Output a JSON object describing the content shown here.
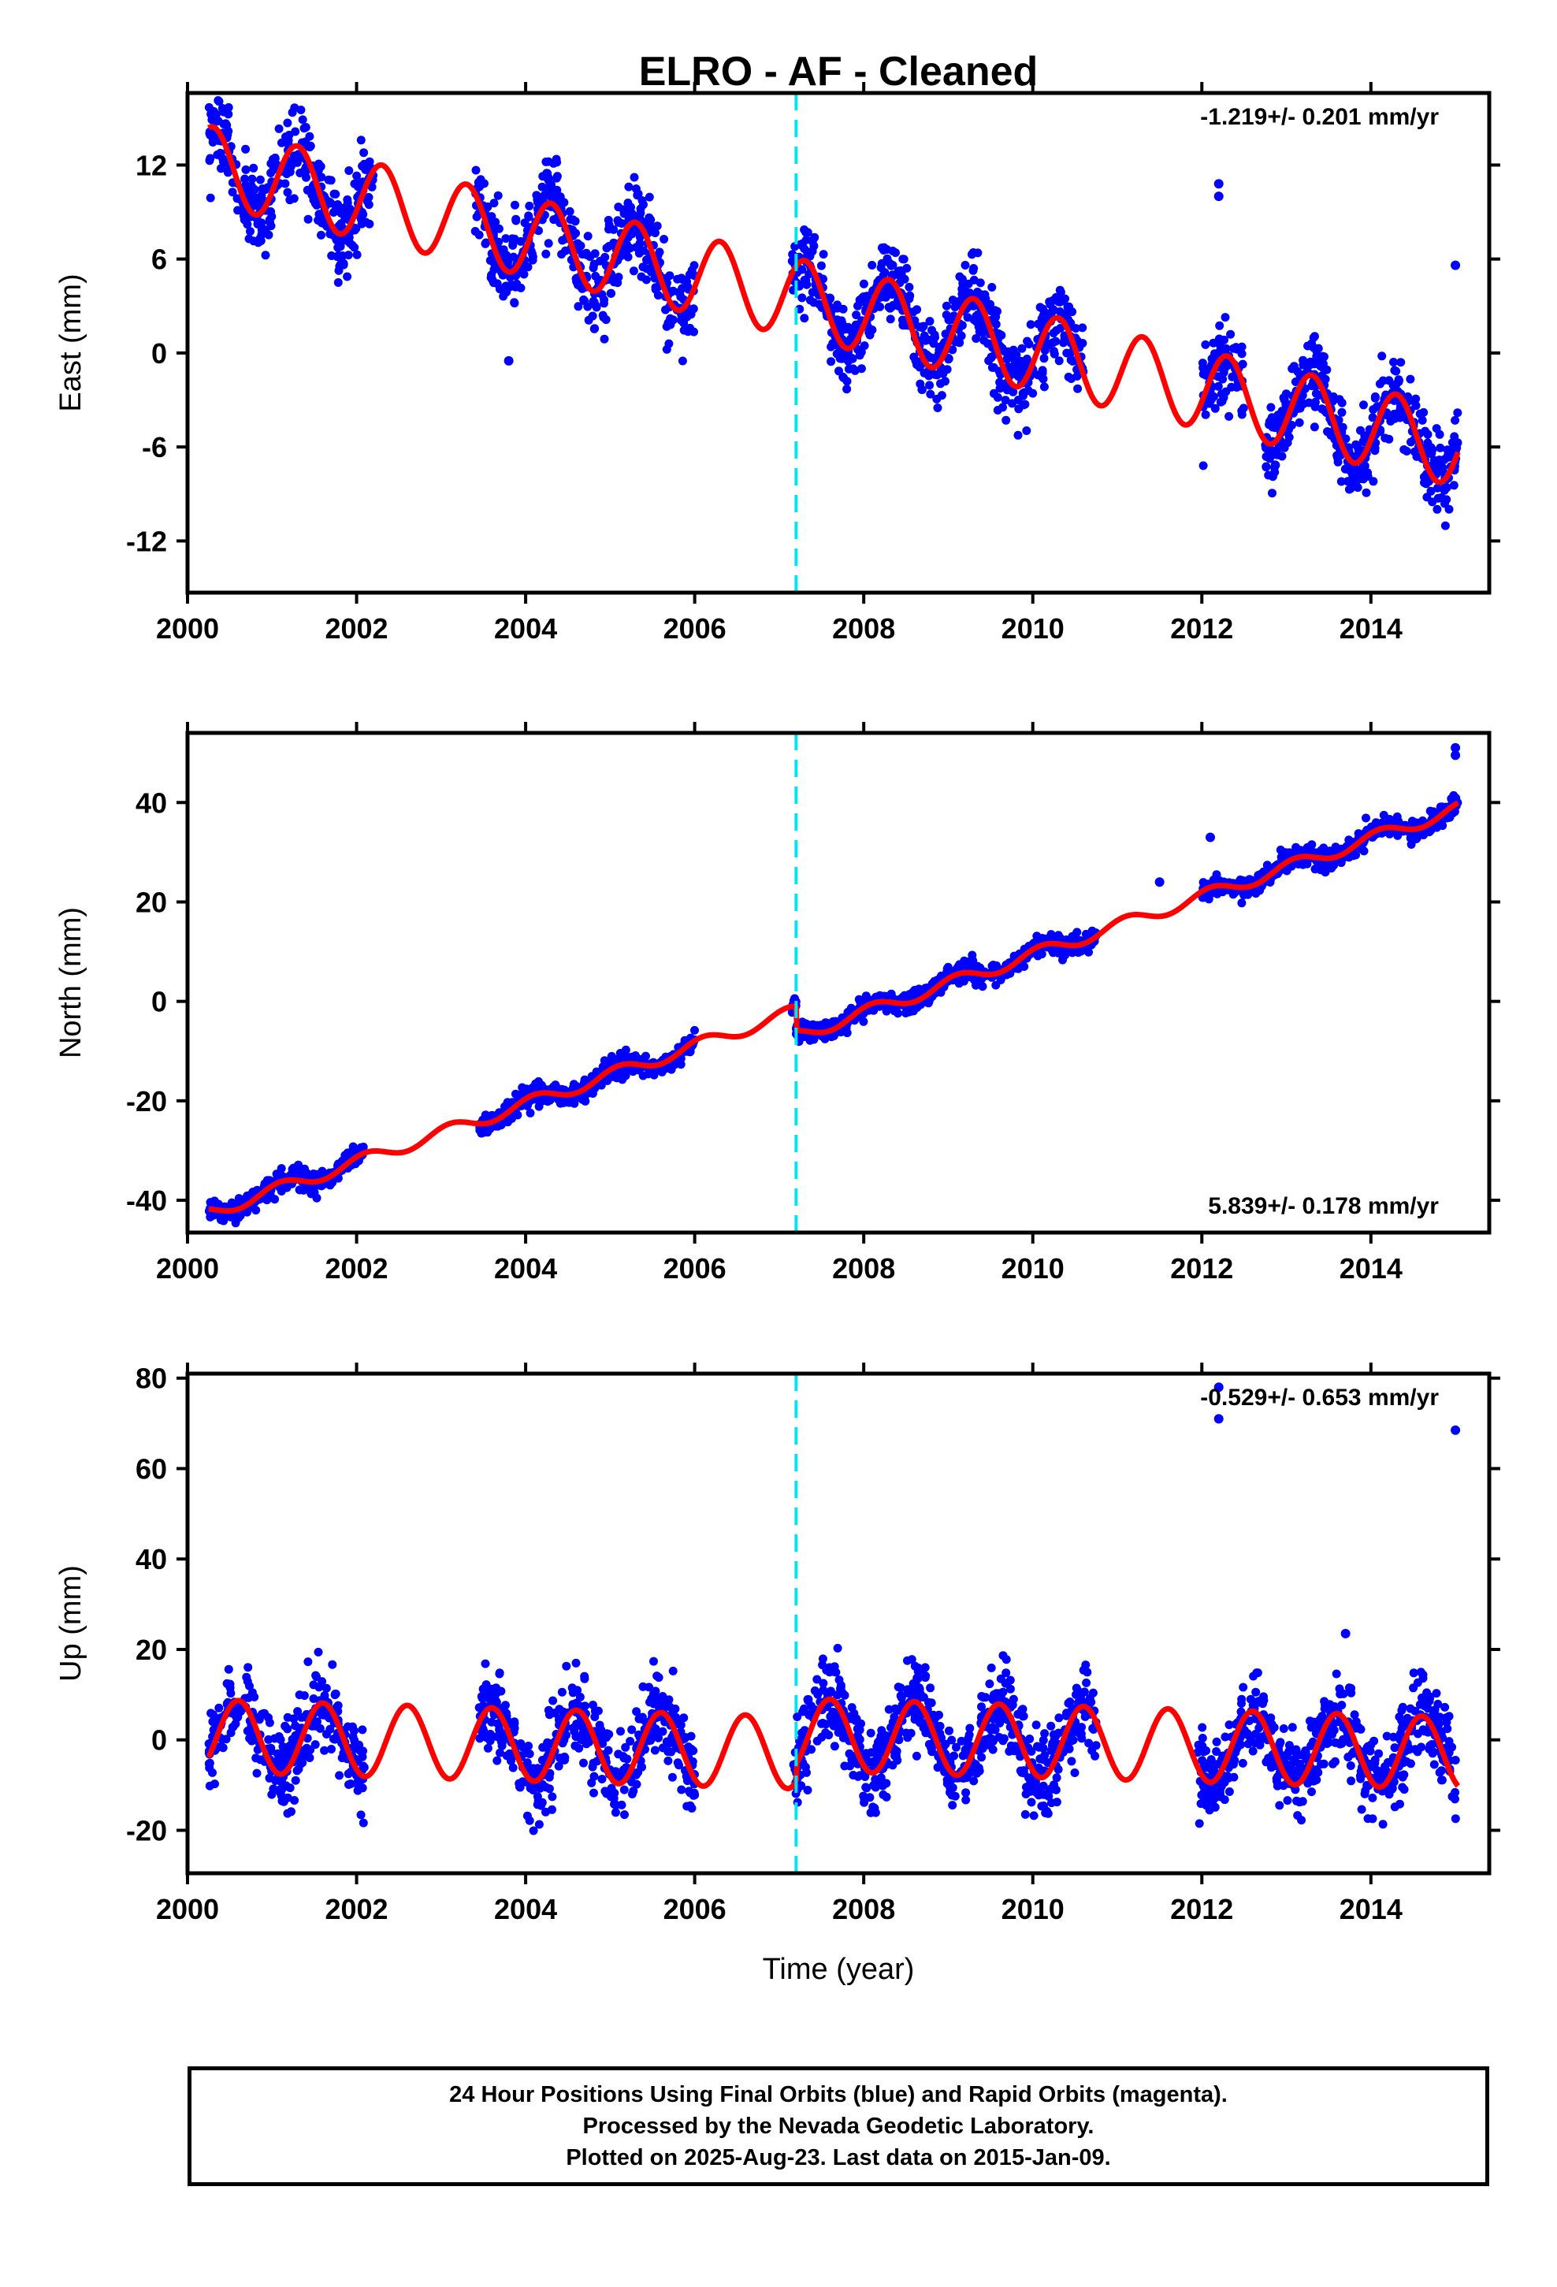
{
  "chart_data": [
    {
      "type": "scatter",
      "title": "ELRO  - AF - Cleaned",
      "xlabel": "",
      "ylabel": "East (mm)",
      "xlim": [
        2000.0,
        2015.4
      ],
      "ylim": [
        -15.3,
        16.6
      ],
      "xticks": [
        "2000",
        "2002",
        "2004",
        "2006",
        "2008",
        "2010",
        "2012",
        "2014"
      ],
      "yticks": [
        "12",
        "6",
        "0",
        "-6",
        "-12"
      ],
      "rate_label": "-1.219+/- 0.201 mm/yr",
      "rate_placement": "top-right",
      "equipment_change_line": 2007.2,
      "trend": {
        "rate_mm_per_yr": -1.219,
        "value_at_2000": 12.3
      },
      "seasonal": {
        "annual_amplitude_mm": 2.5,
        "peak_fraction_of_year": 0.3
      },
      "data_segments": [
        [
          2000.25,
          2002.2
        ],
        [
          2003.4,
          2006.0
        ],
        [
          2007.15,
          2010.6
        ],
        [
          2012.0,
          2012.5
        ],
        [
          2012.75,
          2015.03
        ]
      ],
      "series": [
        {
          "name": "Final Orbits",
          "color": "#0000ff",
          "kind": "daily positions",
          "scatter_mm": 1.3
        },
        {
          "name": "Model",
          "color": "#ff0000",
          "kind": "fitted model"
        }
      ],
      "outliers": [
        {
          "x": 2012.2,
          "y": 10.8
        },
        {
          "x": 2012.2,
          "y": 10.0
        },
        {
          "x": 2015.0,
          "y": 5.6
        },
        {
          "x": 2003.8,
          "y": -0.5
        }
      ]
    },
    {
      "type": "scatter",
      "title": "",
      "xlabel": "",
      "ylabel": "North (mm)",
      "xlim": [
        2000.0,
        2015.4
      ],
      "ylim": [
        -46.5,
        54.0
      ],
      "xticks": [
        "2000",
        "2002",
        "2004",
        "2006",
        "2008",
        "2010",
        "2012",
        "2014"
      ],
      "yticks": [
        "40",
        "20",
        "0",
        "-20",
        "-40"
      ],
      "rate_label": "5.839+/- 0.178 mm/yr",
      "rate_placement": "bottom-right",
      "equipment_change_line": 2007.2,
      "trend": {
        "rate_mm_per_yr": 5.839,
        "value_at_2000": -44.0,
        "offset_at_change_mm": -5.0
      },
      "seasonal": {
        "annual_amplitude_mm": 1.3,
        "peak_fraction_of_year": 0.1
      },
      "data_segments": [
        [
          2000.25,
          2002.1
        ],
        [
          2003.45,
          2006.0
        ],
        [
          2007.15,
          2010.75
        ],
        [
          2012.0,
          2015.03
        ]
      ],
      "series": [
        {
          "name": "Final Orbits",
          "color": "#0000ff",
          "kind": "daily positions",
          "scatter_mm": 1.0
        },
        {
          "name": "Model",
          "color": "#ff0000",
          "kind": "fitted model"
        }
      ],
      "outliers": [
        {
          "x": 2015.0,
          "y": 51.0
        },
        {
          "x": 2015.0,
          "y": 49.5
        },
        {
          "x": 2012.1,
          "y": 33.0
        },
        {
          "x": 2011.5,
          "y": 24.0
        }
      ]
    },
    {
      "type": "scatter",
      "title": "",
      "xlabel": "Time (year)",
      "ylabel": "Up (mm)",
      "xlim": [
        2000.0,
        2015.4
      ],
      "ylim": [
        -29.5,
        81.0
      ],
      "xticks": [
        "2000",
        "2002",
        "2004",
        "2006",
        "2008",
        "2010",
        "2012",
        "2014"
      ],
      "yticks": [
        "80",
        "60",
        "40",
        "20",
        "0",
        "-20"
      ],
      "rate_label": "-0.529+/- 0.653 mm/yr",
      "rate_placement": "top-right",
      "equipment_change_line": 2007.2,
      "trend": {
        "rate_mm_per_yr": -0.529,
        "value_at_2000": 1.0,
        "offset_at_change_mm": 4.0
      },
      "seasonal": {
        "annual_amplitude_mm": 8.0,
        "peak_fraction_of_year": 0.6
      },
      "data_segments": [
        [
          2000.25,
          2002.1
        ],
        [
          2003.45,
          2006.0
        ],
        [
          2007.15,
          2010.75
        ],
        [
          2011.95,
          2015.03
        ]
      ],
      "series": [
        {
          "name": "Final Orbits",
          "color": "#0000ff",
          "kind": "daily positions",
          "scatter_mm": 4.5
        },
        {
          "name": "Model",
          "color": "#ff0000",
          "kind": "fitted model"
        }
      ],
      "outliers": [
        {
          "x": 2012.2,
          "y": 78.0
        },
        {
          "x": 2012.2,
          "y": 71.0
        },
        {
          "x": 2015.0,
          "y": 68.5
        },
        {
          "x": 2013.7,
          "y": 23.5
        }
      ]
    }
  ],
  "footer": {
    "line1": "24 Hour Positions Using Final Orbits (blue) and Rapid Orbits (magenta).",
    "line2": "Processed by the Nevada Geodetic Laboratory.",
    "line3": "Plotted on 2025-Aug-23. Last data on 2015-Jan-09."
  },
  "colors": {
    "data": "#0000ff",
    "model": "#ff0000",
    "change_line": "#00e5ee",
    "frame": "#000000"
  }
}
